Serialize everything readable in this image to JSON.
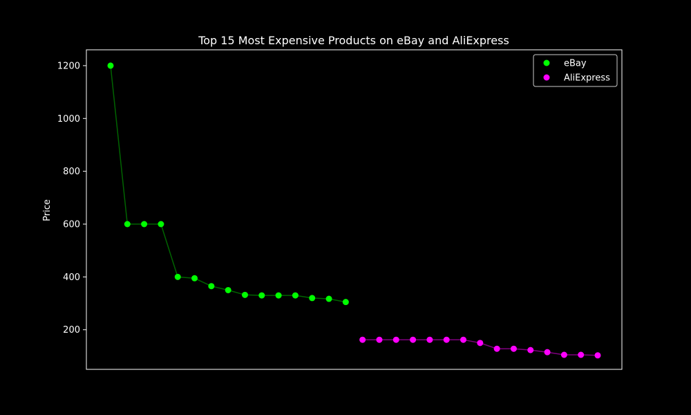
{
  "chart_data": {
    "type": "scatter",
    "title": "Top 15 Most Expensive Products on eBay and AliExpress",
    "xlabel": "",
    "ylabel": "Price",
    "ylim": [
      50,
      1260
    ],
    "y_ticks": [
      200,
      400,
      600,
      800,
      1000,
      1200
    ],
    "grid": false,
    "legend_position": "top-right",
    "background": "#000000",
    "axis_color": "#ffffff",
    "series": [
      {
        "name": "eBay",
        "color": "#00ff00",
        "line_color": "#006400",
        "x": [
          0,
          1,
          2,
          3,
          4,
          5,
          6,
          7,
          8,
          9,
          10,
          11,
          12,
          13,
          14
        ],
        "values": [
          1200,
          600,
          600,
          600,
          400,
          395,
          365,
          350,
          332,
          330,
          330,
          330,
          320,
          317,
          305
        ]
      },
      {
        "name": "AliExpress",
        "color": "#ff00ff",
        "line_color": "#7f007f",
        "x": [
          15,
          16,
          17,
          18,
          19,
          20,
          21,
          22,
          23,
          24,
          25,
          26,
          27,
          28,
          29
        ],
        "values": [
          162,
          162,
          162,
          162,
          162,
          162,
          162,
          150,
          128,
          128,
          123,
          115,
          105,
          105,
          103
        ]
      }
    ]
  }
}
